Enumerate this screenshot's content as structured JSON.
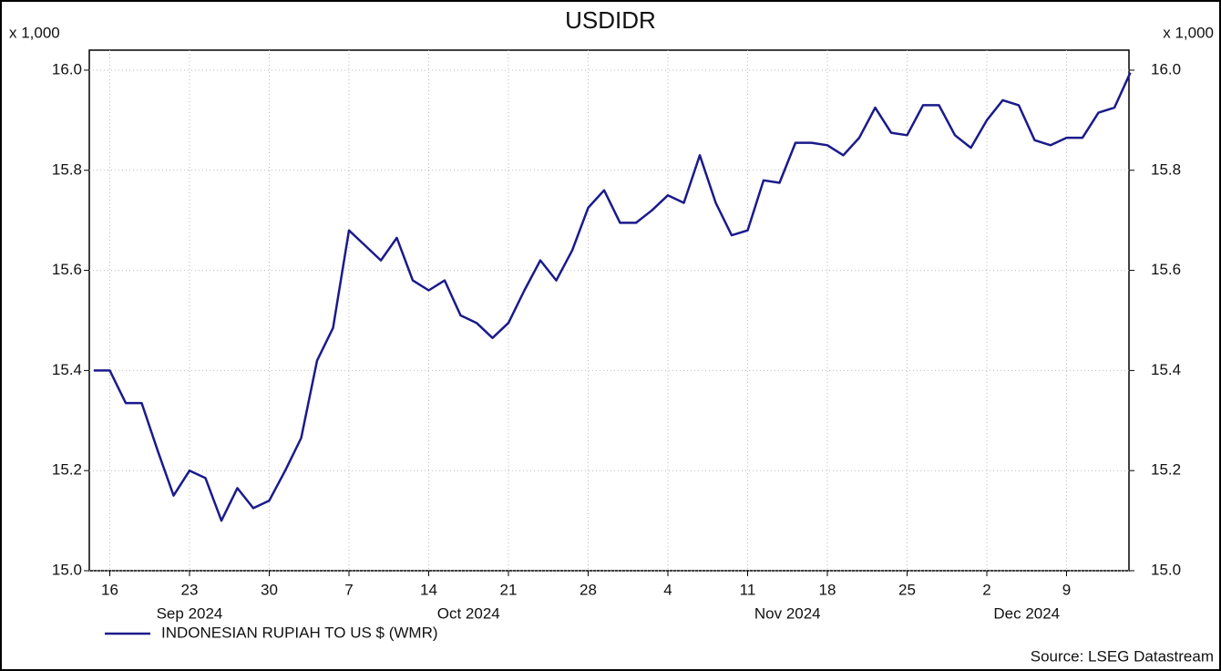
{
  "chart_data": {
    "type": "line",
    "title": "USDIDR",
    "y_unit_label": "x 1,000",
    "categories": [
      null,
      "16",
      null,
      null,
      null,
      null,
      "23",
      null,
      null,
      null,
      null,
      "30",
      null,
      null,
      null,
      null,
      "7",
      null,
      null,
      null,
      null,
      "14",
      null,
      null,
      null,
      null,
      "21",
      null,
      null,
      null,
      null,
      "28",
      null,
      null,
      null,
      null,
      "4",
      null,
      null,
      null,
      null,
      "11",
      null,
      null,
      null,
      null,
      "18",
      null,
      null,
      null,
      null,
      "25",
      null,
      null,
      null,
      null,
      "2",
      null,
      null,
      null,
      null,
      "9",
      null,
      null,
      null,
      null
    ],
    "months": [
      "Sep 2024",
      "Oct 2024",
      "Nov 2024",
      "Dec 2024"
    ],
    "series": [
      {
        "name": "INDONESIAN RUPIAH TO US $ (WMR)",
        "color": "#1a1a8c",
        "values": [
          15.4,
          15.4,
          15.335,
          15.335,
          15.24,
          15.15,
          15.2,
          15.185,
          15.1,
          15.165,
          15.125,
          15.14,
          15.2,
          15.265,
          15.42,
          15.485,
          15.68,
          15.65,
          15.62,
          15.665,
          15.58,
          15.56,
          15.58,
          15.51,
          15.495,
          15.465,
          15.495,
          15.56,
          15.62,
          15.58,
          15.64,
          15.725,
          15.76,
          15.695,
          15.695,
          15.72,
          15.75,
          15.735,
          15.83,
          15.735,
          15.67,
          15.68,
          15.78,
          15.775,
          15.855,
          15.855,
          15.85,
          15.83,
          15.865,
          15.925,
          15.875,
          15.87,
          15.93,
          15.93,
          15.87,
          15.845,
          15.9,
          15.94,
          15.93,
          15.86,
          15.85,
          15.865,
          15.865,
          15.915,
          15.925,
          15.995
        ]
      }
    ],
    "ylim": [
      15.0,
      16.04
    ],
    "yticks": [
      {
        "value": 15,
        "label": "15.0"
      },
      15.2,
      15.4,
      15.6,
      15.8,
      {
        "value": 16,
        "label": "16.0"
      }
    ],
    "grid": true,
    "source": "Source: LSEG Datastream"
  }
}
